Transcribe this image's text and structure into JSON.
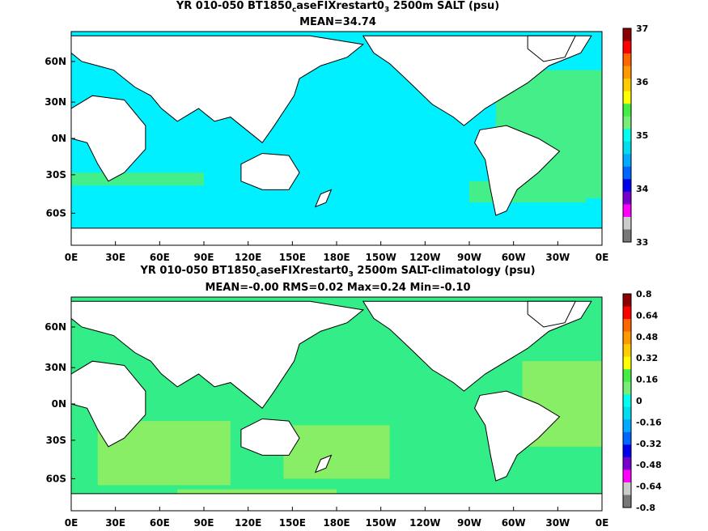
{
  "panels": [
    {
      "title_a": "YR 010-050 BT1850",
      "title_sub": "c",
      "title_b": "aseFIXrestart0",
      "title_sub2": "3",
      "title_c": " 2500m SALT (psu)",
      "subtitle": "MEAN=34.74",
      "lat_labels": [
        "60N",
        "30N",
        "0N",
        "30S",
        "60S"
      ],
      "lon_labels": [
        "0E",
        "30E",
        "60E",
        "90E",
        "120E",
        "150E",
        "180E",
        "150W",
        "120W",
        "90W",
        "60W",
        "30W",
        "0E"
      ],
      "colorbar_labels": [
        "37",
        "36",
        "35",
        "34",
        "33"
      ],
      "colorbar_colors": [
        "#8b0000",
        "#ff0000",
        "#ff6600",
        "#ff9900",
        "#ffcc00",
        "#ffff00",
        "#44ee44",
        "#77ee77",
        "#00ffee",
        "#00ddee",
        "#00aaff",
        "#0066ff",
        "#0000ee",
        "#7700cc",
        "#ff00ff",
        "#cccccc",
        "#777777"
      ],
      "ocean_color": "#00f0ff",
      "patch_color": "#44ee88"
    },
    {
      "title_a": "YR 010-050 BT1850",
      "title_sub": "c",
      "title_b": "aseFIXrestart0",
      "title_sub2": "3",
      "title_c": " 2500m SALT-climatology (psu)",
      "subtitle": "MEAN=-0.00   RMS=0.02   Max=0.24   Min=-0.10",
      "lat_labels": [
        "60N",
        "30N",
        "0N",
        "30S",
        "60S"
      ],
      "lon_labels": [
        "0E",
        "30E",
        "60E",
        "90E",
        "120E",
        "150E",
        "180E",
        "150W",
        "120W",
        "90W",
        "60W",
        "30W",
        "0E"
      ],
      "colorbar_labels": [
        "0.8",
        "0.64",
        "0.48",
        "0.32",
        "0.16",
        "0",
        "-0.16",
        "-0.32",
        "-0.48",
        "-0.64",
        "-0.8"
      ],
      "colorbar_colors": [
        "#8b0000",
        "#ff0000",
        "#ff6600",
        "#ff9900",
        "#ffcc00",
        "#ffff00",
        "#44ee44",
        "#77ee77",
        "#00ffee",
        "#00ddee",
        "#00aaff",
        "#0066ff",
        "#0000ee",
        "#7700cc",
        "#ff00ff",
        "#cccccc",
        "#777777"
      ],
      "ocean_color": "#33ee88",
      "patch_color": "#88ee66"
    }
  ]
}
